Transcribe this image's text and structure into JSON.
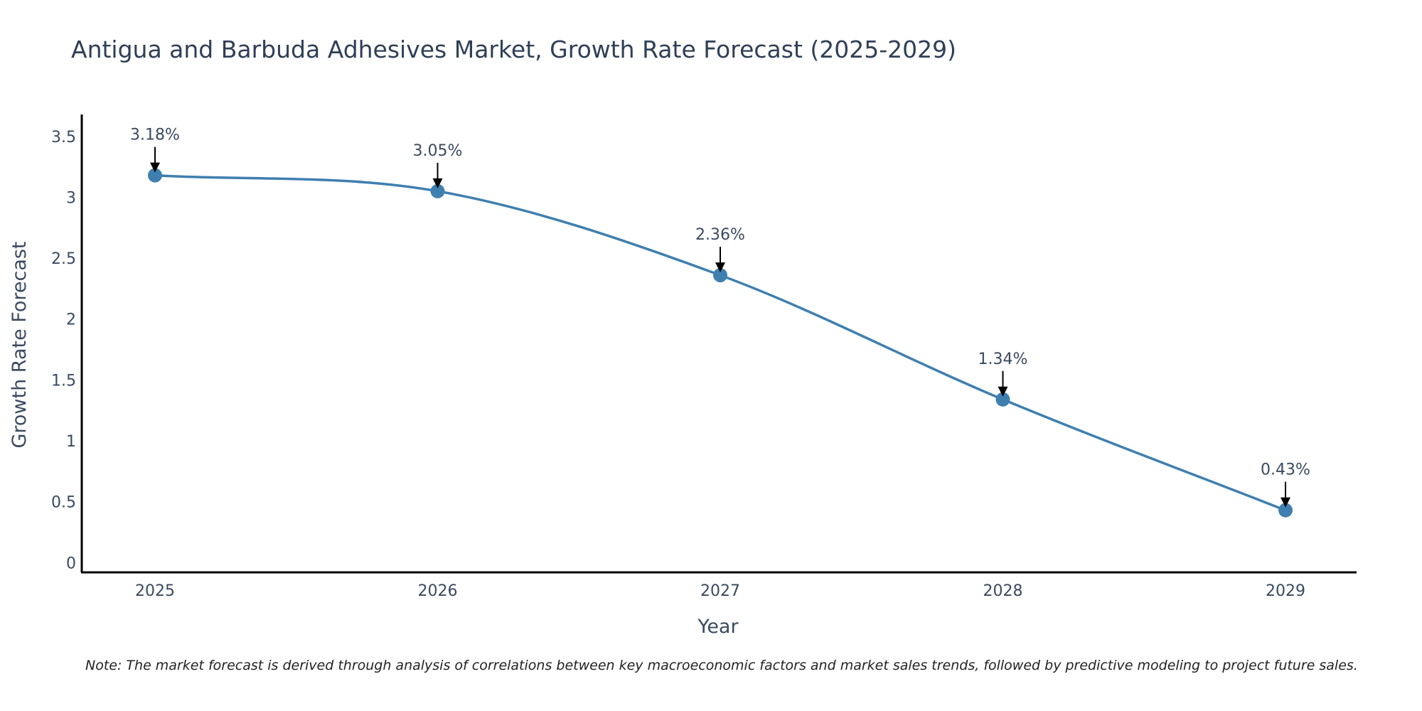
{
  "chart_data": {
    "type": "line",
    "title": "Antigua and Barbuda Adhesives Market, Growth Rate Forecast (2025-2029)",
    "xlabel": "Year",
    "ylabel": "Growth Rate Forecast",
    "categories": [
      "2025",
      "2026",
      "2027",
      "2028",
      "2029"
    ],
    "series": [
      {
        "name": "Growth Rate Forecast",
        "values": [
          3.18,
          3.05,
          2.36,
          1.34,
          0.43
        ],
        "color": "#3f7fb0"
      }
    ],
    "data_labels": [
      "3.18%",
      "3.05%",
      "2.36%",
      "1.34%",
      "0.43%"
    ],
    "ylim": [
      -0.08,
      3.68
    ],
    "y_ticks": [
      "0",
      "0.5",
      "1",
      "1.5",
      "2",
      "2.5",
      "3",
      "3.5"
    ],
    "y_tick_values": [
      0,
      0.5,
      1,
      1.5,
      2,
      2.5,
      3,
      3.5
    ],
    "grid": false,
    "note": "Note: The market forecast is derived through analysis of correlations between key macroeconomic factors and market sales trends, followed by predictive modeling to project future sales."
  }
}
